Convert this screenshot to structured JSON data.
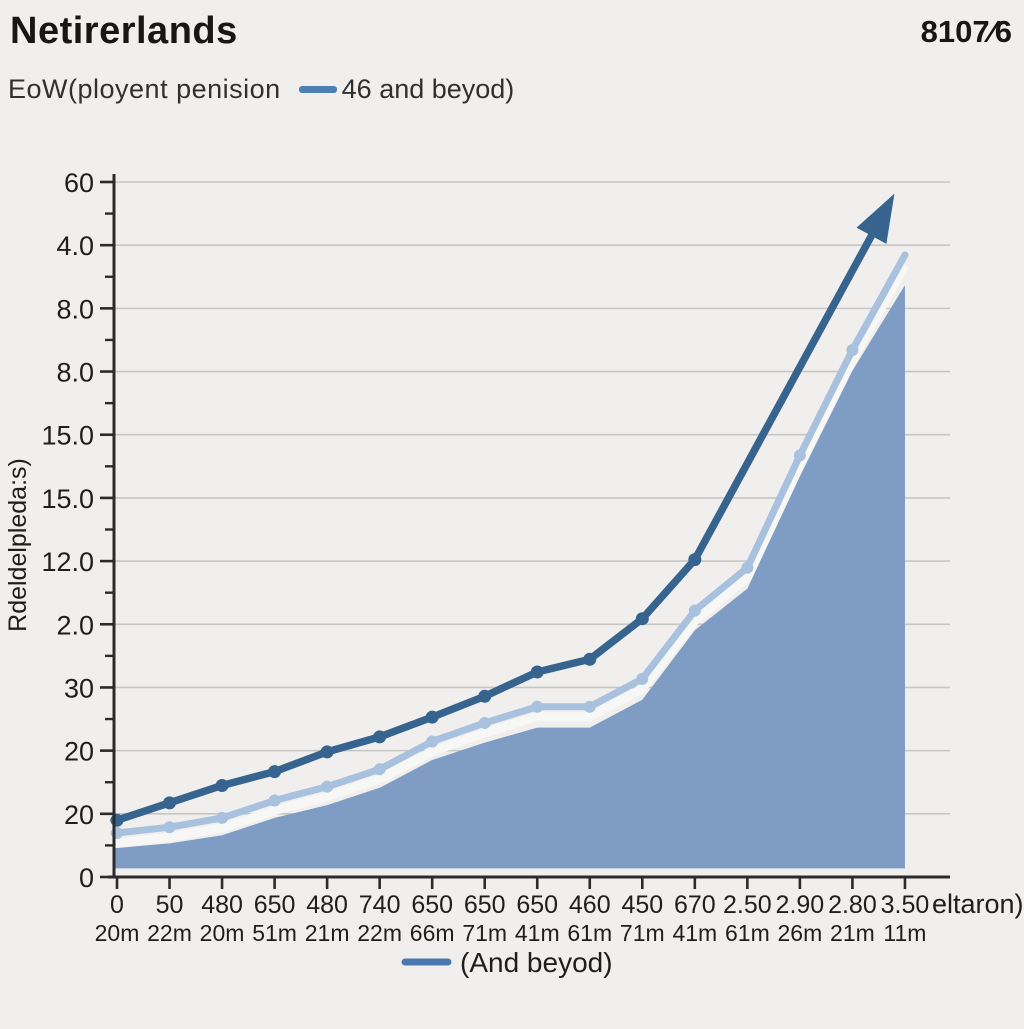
{
  "header": {
    "title": "Netirerlands",
    "top_right_value": "8107⁄6"
  },
  "legend_top": {
    "label_left": "EoW(ployent penision",
    "swatch_color": "#4d7fb5",
    "label_right": "46 and beyod)"
  },
  "legend_bottom": {
    "swatch_color": "#4a7aad",
    "label": "(And beyod)"
  },
  "colors": {
    "background": "#f0efed",
    "gridline": "#c6c6c4",
    "axis": "#2b2b2b",
    "upper_line": "#36648f",
    "lower_line": "#a8c1de",
    "lower_line_edge": "#f7f7f5",
    "area_fill": "#7e9cc4"
  },
  "chart_data": {
    "type": "line",
    "title": "Netirerlands",
    "y_axis_label": "Rdeldelpleda:s)",
    "x_axis_suffix_label": "eltaron)",
    "ylim": [
      0,
      60
    ],
    "grid": true,
    "legend_position": "bottom",
    "y_tick_labels": [
      "60",
      "4.0",
      "8.0",
      "8.0",
      "15.0",
      "15.0",
      "12.0",
      "2.0",
      "30",
      "20",
      "20",
      "0"
    ],
    "x_tick_labels_row1": [
      "0",
      "50",
      "480",
      "650",
      "480",
      "740",
      "650",
      "650",
      "650",
      "460",
      "450",
      "670",
      "2.50",
      "2.90",
      "2.80",
      "3.50"
    ],
    "x_tick_labels_row2": [
      "20m",
      "22m",
      "20m",
      "51m",
      "21m",
      "22m",
      "66m",
      "71m",
      "41m",
      "61m",
      "71m",
      "41m",
      "61m",
      "26m",
      "21m",
      "11m"
    ],
    "series": [
      {
        "name": "46 and beyod)",
        "role": "upper-line",
        "color": "#36648f",
        "marker": "circle",
        "values": [
          4.9,
          6.4,
          7.9,
          9.1,
          10.8,
          12.1,
          13.8,
          15.6,
          17.7,
          18.8,
          22.3,
          27.4
        ],
        "arrow_end": {
          "x_index": 14.8,
          "value": 59.0
        }
      },
      {
        "name": "(And beyod)",
        "role": "lower-line",
        "color": "#a8c1de",
        "edge_color": "#f7f7f5",
        "marker": "circle",
        "values": [
          3.8,
          4.3,
          5.1,
          6.6,
          7.8,
          9.3,
          11.7,
          13.3,
          14.7,
          14.7,
          17.1,
          23.0,
          26.7,
          36.4,
          45.5,
          53.7
        ]
      },
      {
        "name": "area",
        "role": "area",
        "color": "#7e9cc4",
        "baseline": 0.75,
        "values": [
          2.5,
          2.9,
          3.6,
          5.1,
          6.2,
          7.7,
          10.1,
          11.6,
          12.9,
          12.9,
          15.3,
          21.3,
          24.9,
          34.6,
          43.7,
          51.1
        ]
      }
    ]
  }
}
